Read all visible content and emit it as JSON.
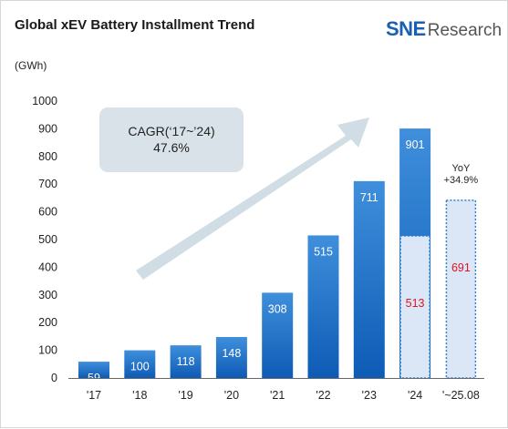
{
  "title": "Global xEV Battery Installment Trend",
  "unit_label": "(GWh)",
  "logo": {
    "brand": "SNE",
    "suffix": "Research"
  },
  "cagr": {
    "line1": "CAGR(‘17~’24)",
    "line2": "47.6%"
  },
  "yoy": {
    "line1": "YoY",
    "line2": "+34.9%"
  },
  "colors": {
    "bar_top": "#3f8fdc",
    "bar_bottom": "#0d5bb5",
    "partial_fill": "#dbe6f7",
    "partial_border": "#2f7fd0",
    "partial_label": "#e0141e",
    "arrow": "#d0dde5"
  },
  "chart_data": {
    "type": "bar",
    "categories": [
      "'17",
      "'18",
      "'19",
      "'20",
      "'21",
      "'22",
      "'23",
      "'24",
      "'~25.08"
    ],
    "values": [
      59,
      100,
      118,
      148,
      308,
      515,
      711,
      901,
      null
    ],
    "value_labels": [
      "59",
      "100",
      "118",
      "148",
      "308",
      "515",
      "711",
      "901",
      ""
    ],
    "partial_values": [
      null,
      null,
      null,
      null,
      null,
      null,
      null,
      513,
      691
    ],
    "partial_labels": [
      "",
      "",
      "",
      "",
      "",
      "",
      "",
      "513",
      "691"
    ],
    "y_ticks": [
      "0",
      "100",
      "200",
      "300",
      "400",
      "500",
      "600",
      "700",
      "800",
      "900",
      "1000"
    ],
    "ylim": [
      0,
      1000
    ],
    "ylabel": "(GWh)",
    "grid": false
  }
}
